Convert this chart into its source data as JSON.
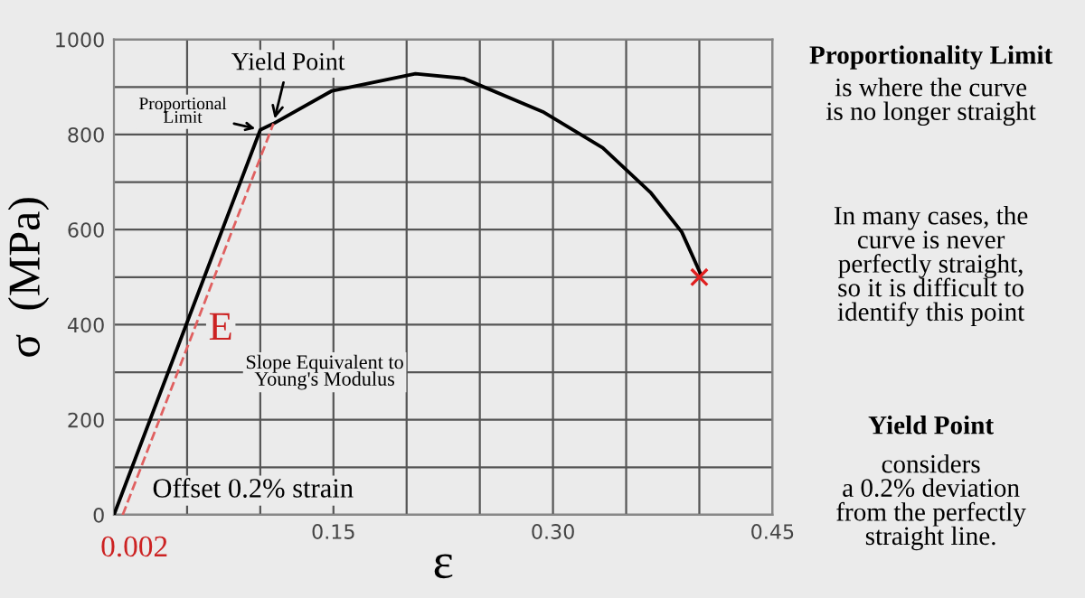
{
  "chart_data": {
    "type": "line",
    "xlabel": "ε",
    "ylabel": "σ  (MPa)",
    "series": [
      {
        "color": "#000000",
        "x": [
          0,
          0.1,
          0.109,
          0.149,
          0.206,
          0.239,
          0.293,
          0.334,
          0.367,
          0.388,
          0.401
        ],
        "values": [
          0,
          810,
          823,
          892,
          928,
          918,
          848,
          772,
          677,
          595,
          506
        ],
        "line_style": "solid"
      },
      {
        "color": "#e06060",
        "x": [
          0.006,
          0.109
        ],
        "values": [
          0,
          823
        ],
        "line_style": "dashed"
      },
      {
        "type": "scatter",
        "color": "#e02020",
        "x": [
          0.4
        ],
        "values": [
          500
        ],
        "marker": "cross"
      }
    ],
    "xlim": [
      0,
      0.45
    ],
    "ylim": [
      0,
      1000
    ],
    "xticks": [
      {
        "value": 0.05,
        "label": null
      },
      {
        "value": 0.1,
        "label": null
      },
      {
        "value": 0.15,
        "label": "0.15"
      },
      {
        "value": 0.2,
        "label": null
      },
      {
        "value": 0.25,
        "label": null
      },
      {
        "value": 0.3,
        "label": "0.30"
      },
      {
        "value": 0.35,
        "label": null
      },
      {
        "value": 0.4,
        "label": null
      },
      {
        "value": 0.45,
        "label": "0.45"
      }
    ],
    "yticks": [
      0,
      {
        "value": 100,
        "label": null
      },
      200,
      {
        "value": 300,
        "label": null
      },
      400,
      {
        "value": 500,
        "label": null
      },
      600,
      {
        "value": 700,
        "label": null
      },
      800,
      {
        "value": 900,
        "label": null
      },
      1000
    ],
    "grid": true,
    "annotations": [
      {
        "text": "Yield Point",
        "x": 0.109,
        "y": 823
      },
      {
        "text": "Proportional\nLimit",
        "x": 0.1,
        "y": 810
      },
      "E",
      "Slope Equivalent to\nYoung's Modulus",
      "Offset 0.2% strain",
      "0.002",
      "Proportionality Limit",
      "is where the curve\nis no longer straight",
      "In many cases, the\ncurve is never\nperfectly straight,\nso it is difficult to\nidentify this point",
      "Yield Point",
      "considers\na 0.2% deviation\nfrom the perfectly\nstraight line."
    ]
  }
}
